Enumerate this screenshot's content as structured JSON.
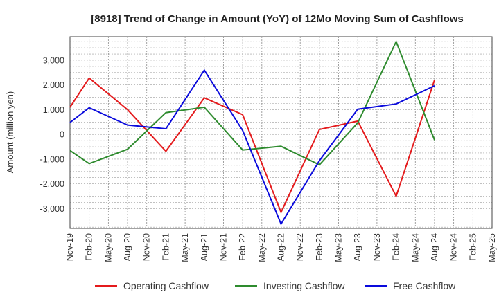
{
  "chart_data": {
    "type": "line",
    "title": "[8918]  Trend of Change in Amount (YoY) of 12Mo Moving Sum of Cashflows",
    "xlabel": "",
    "ylabel": "Amount (million yen)",
    "ylim": [
      -3800,
      3950
    ],
    "yticks": [
      -3000,
      -2000,
      -1000,
      0,
      1000,
      2000,
      3000
    ],
    "ytick_labels": [
      "-3,000",
      "-2,000",
      "-1,000",
      "0",
      "1,000",
      "2,000",
      "3,000"
    ],
    "grid": true,
    "legend_position": "bottom",
    "categories": [
      "Nov-19",
      "Feb-20",
      "May-20",
      "Aug-20",
      "Nov-20",
      "Feb-21",
      "May-21",
      "Aug-21",
      "Nov-21",
      "Feb-22",
      "May-22",
      "Aug-22",
      "Nov-22",
      "Feb-23",
      "May-23",
      "Aug-23",
      "Nov-23",
      "Feb-24",
      "May-24",
      "Aug-24",
      "Nov-24",
      "Feb-25",
      "May-25"
    ],
    "series": [
      {
        "name": "Operating Cashflow",
        "color": "#e41a1c",
        "values": [
          1100,
          2280,
          null,
          1000,
          null,
          -680,
          null,
          1480,
          null,
          800,
          null,
          -3150,
          null,
          200,
          null,
          540,
          null,
          -2500,
          null,
          2200,
          null,
          null,
          null
        ]
      },
      {
        "name": "Investing Cashflow",
        "color": "#2e8b2e",
        "values": [
          -650,
          -1180,
          null,
          -600,
          null,
          880,
          null,
          1100,
          null,
          -630,
          null,
          -480,
          null,
          -1230,
          null,
          470,
          null,
          3750,
          null,
          -230,
          null,
          null,
          null
        ]
      },
      {
        "name": "Free Cashflow",
        "color": "#0a0adc",
        "values": [
          480,
          1080,
          null,
          380,
          null,
          230,
          null,
          2600,
          null,
          160,
          null,
          -3620,
          null,
          -1060,
          null,
          1020,
          null,
          1230,
          null,
          1970,
          null,
          null,
          null
        ]
      }
    ]
  }
}
